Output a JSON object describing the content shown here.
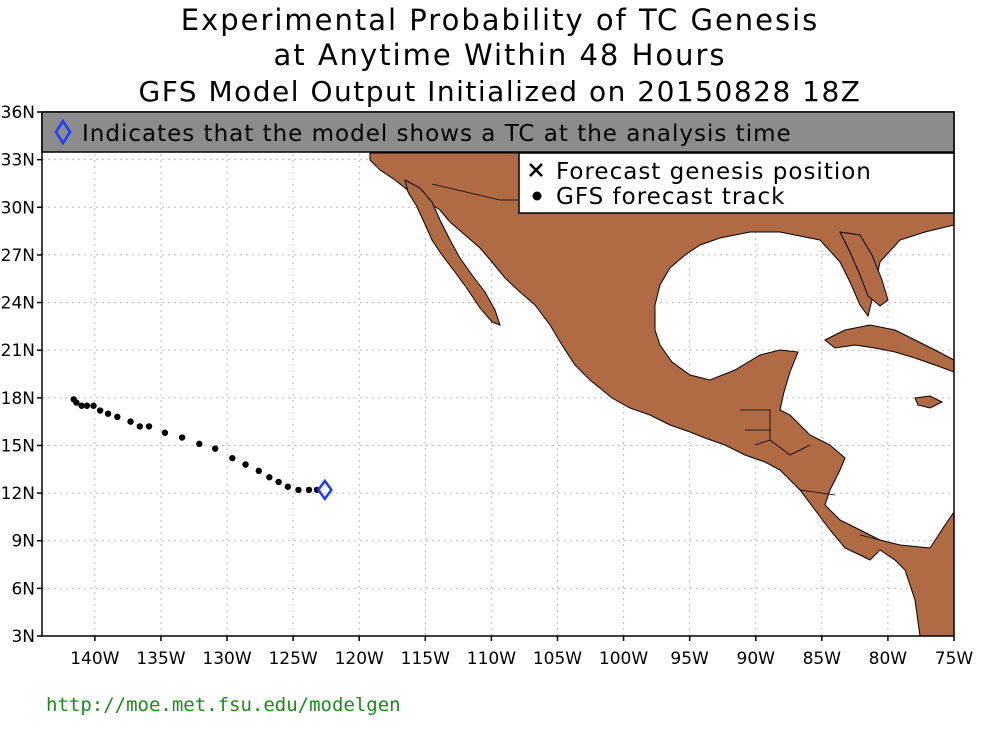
{
  "title": {
    "line1": "Experimental Probability of TC Genesis",
    "line2": "at Anytime Within 48 Hours",
    "line3": "GFS Model Output Initialized on 20150828 18Z"
  },
  "banner": {
    "text": "Indicates that the model shows a TC at the analysis time",
    "icon": "diamond-icon",
    "color": "#1f3cff"
  },
  "legend": {
    "genesis_label": "Forecast genesis position",
    "track_label": "GFS forecast track"
  },
  "axes": {
    "lat_ticks": [
      "36N",
      "33N",
      "30N",
      "27N",
      "24N",
      "21N",
      "18N",
      "15N",
      "12N",
      "9N",
      "6N",
      "3N"
    ],
    "lon_ticks": [
      "140W",
      "135W",
      "130W",
      "125W",
      "120W",
      "115W",
      "110W",
      "105W",
      "100W",
      "95W",
      "90W",
      "85W",
      "80W",
      "75W"
    ],
    "lat_range": [
      3,
      36
    ],
    "lon_range": [
      -144,
      -75
    ]
  },
  "analysis_position": {
    "lon": -122.6,
    "lat": 12.2
  },
  "track": [
    [
      -141.6,
      17.9
    ],
    [
      -141.4,
      17.7
    ],
    [
      -141.0,
      17.5
    ],
    [
      -140.6,
      17.5
    ],
    [
      -140.1,
      17.5
    ],
    [
      -139.6,
      17.2
    ],
    [
      -139.0,
      17.0
    ],
    [
      -138.3,
      16.8
    ],
    [
      -137.3,
      16.5
    ],
    [
      -136.6,
      16.2
    ],
    [
      -135.9,
      16.2
    ],
    [
      -134.7,
      15.8
    ],
    [
      -133.4,
      15.5
    ],
    [
      -132.1,
      15.1
    ],
    [
      -130.9,
      14.8
    ],
    [
      -129.6,
      14.2
    ],
    [
      -128.6,
      13.8
    ],
    [
      -127.6,
      13.4
    ],
    [
      -126.8,
      13.0
    ],
    [
      -126.1,
      12.7
    ],
    [
      -125.4,
      12.4
    ],
    [
      -124.6,
      12.2
    ],
    [
      -123.8,
      12.2
    ],
    [
      -123.2,
      12.2
    ]
  ],
  "colors": {
    "land": "#b06a44",
    "banner_bg": "#8c8c8c",
    "grid": "#bbbbbb",
    "url": "#1a8c1a"
  },
  "footer": {
    "url": "http://moe.met.fsu.edu/modelgen"
  }
}
